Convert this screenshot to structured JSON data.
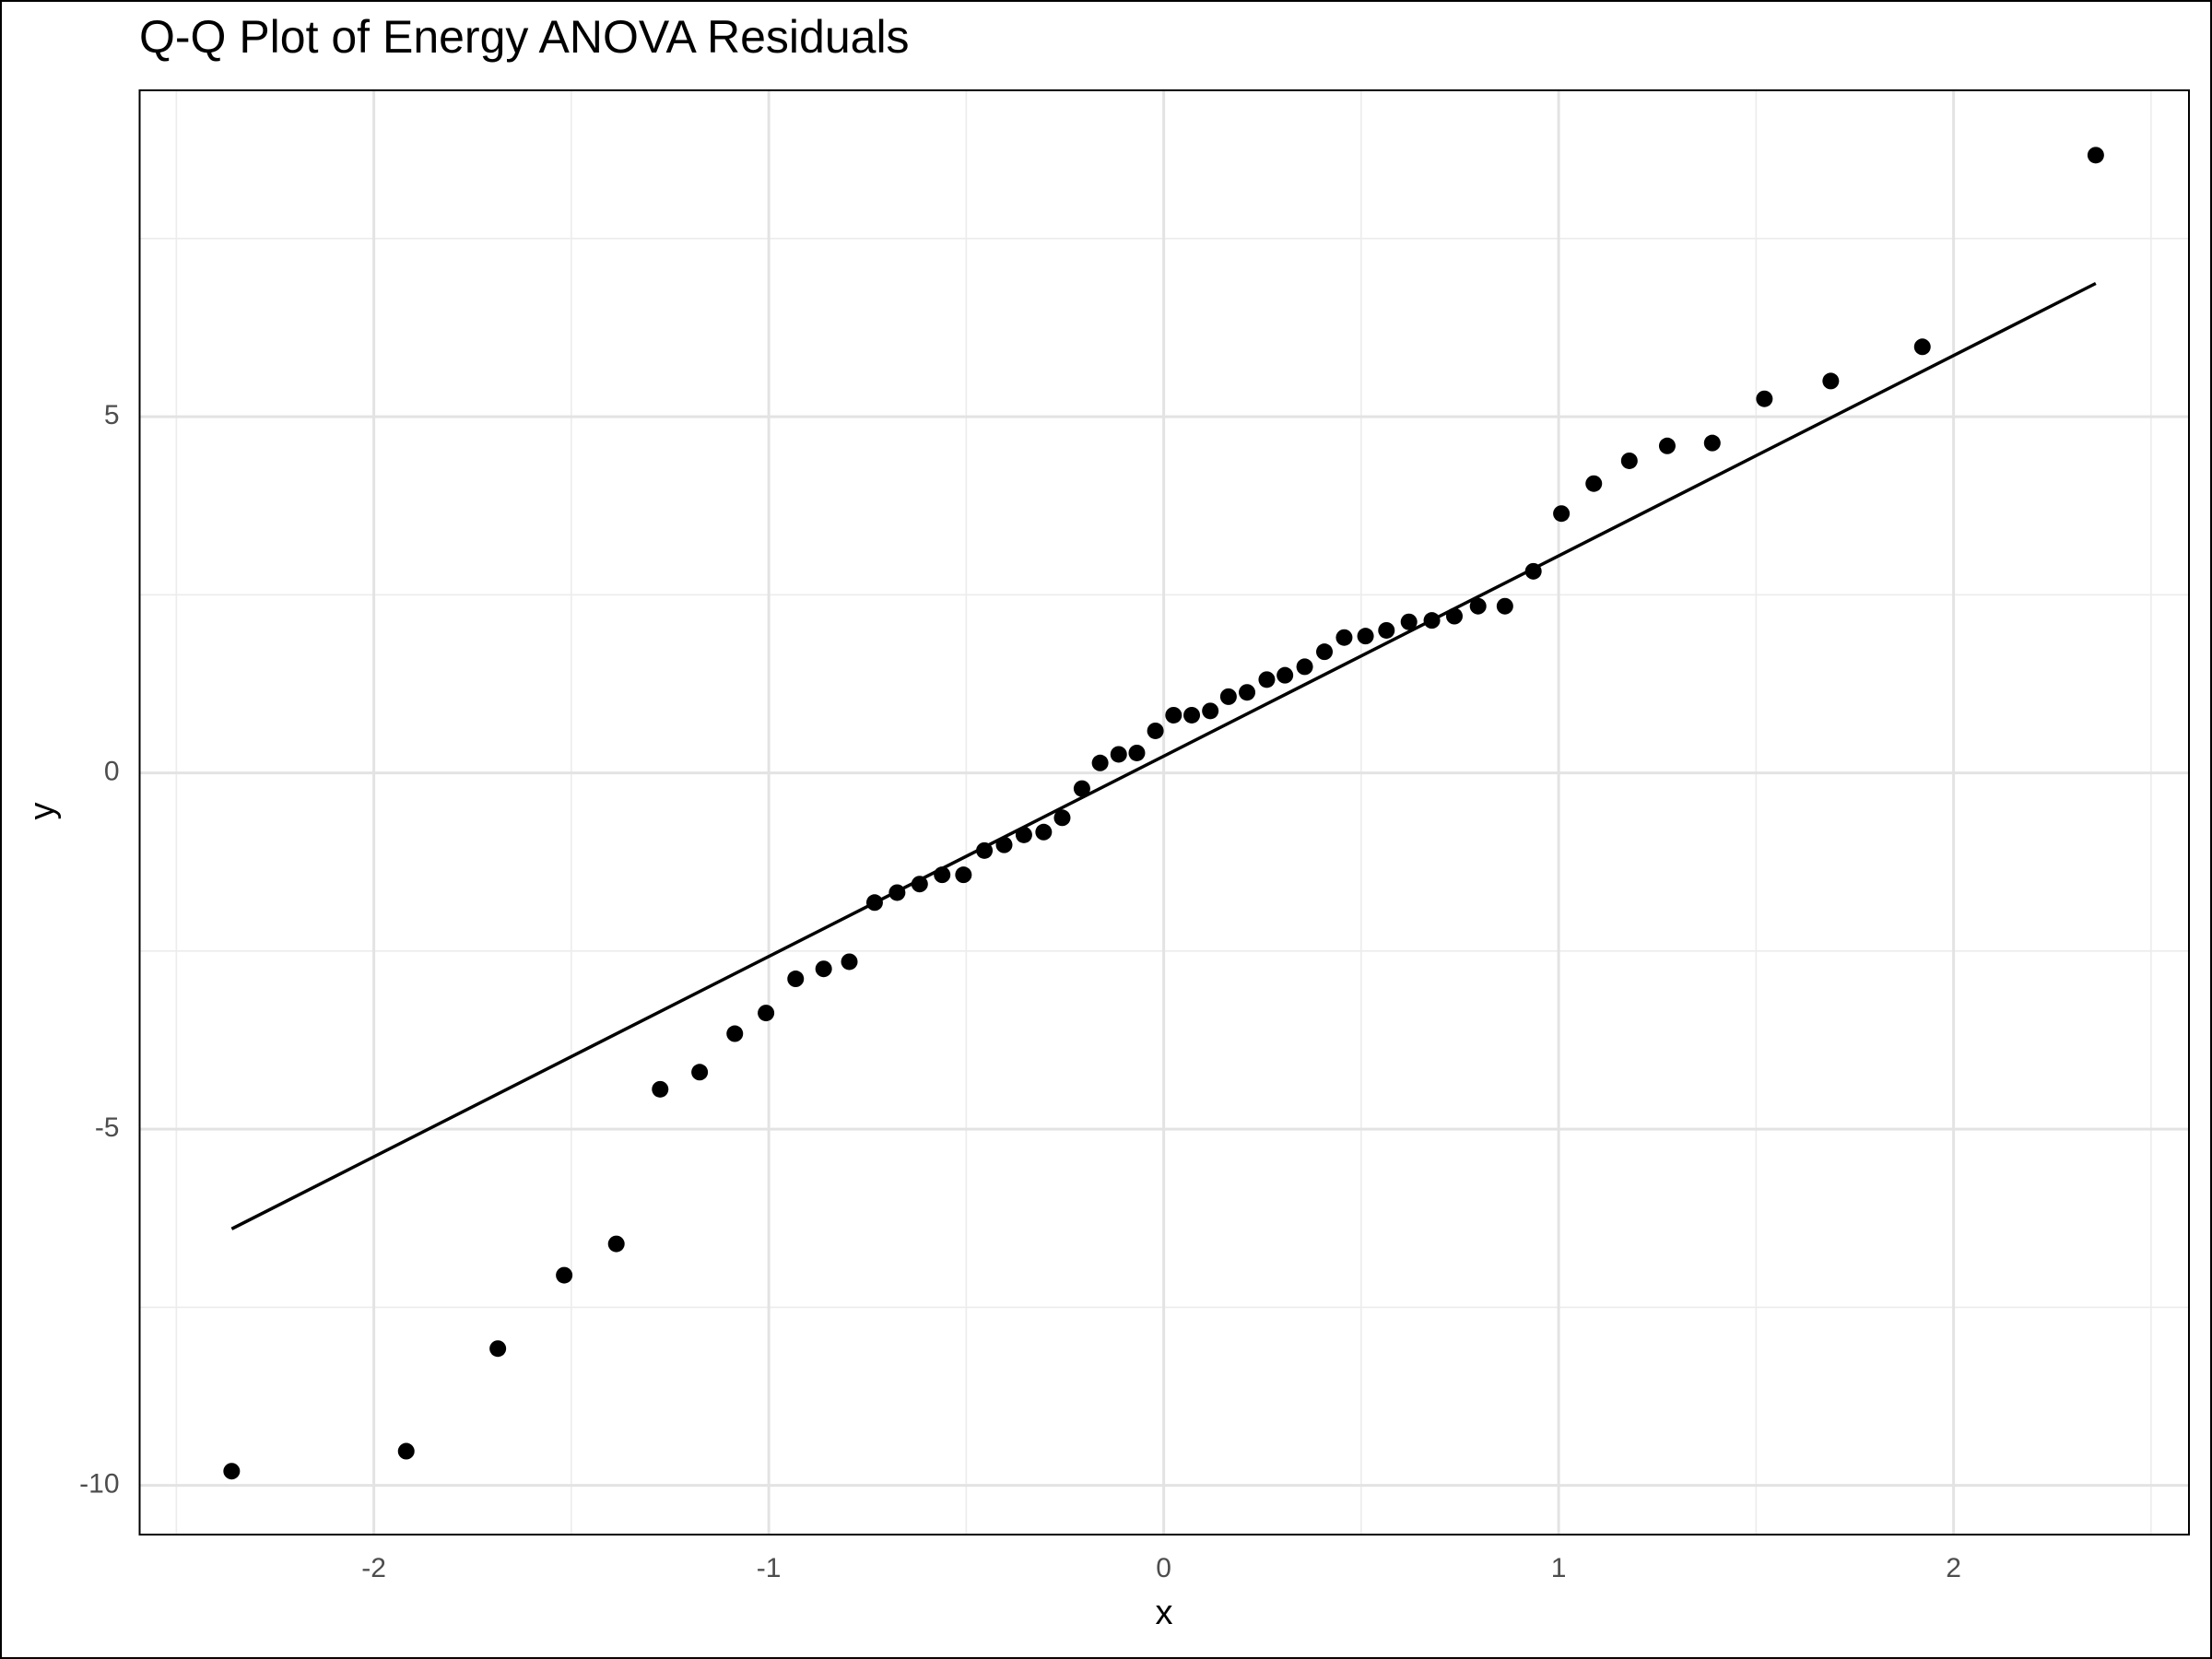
{
  "chart_data": {
    "type": "scatter",
    "title": "Q-Q Plot of Energy ANOVA Residuals",
    "x_label": "x",
    "y_label": "y",
    "x": [
      -2.36,
      -1.918,
      -1.686,
      -1.518,
      -1.386,
      -1.275,
      -1.175,
      -1.086,
      -1.007,
      -0.932,
      -0.861,
      -0.796,
      -0.732,
      -0.675,
      -0.618,
      -0.561,
      -0.507,
      -0.454,
      -0.404,
      -0.354,
      -0.304,
      -0.257,
      -0.207,
      -0.161,
      -0.114,
      -0.068,
      -0.021,
      0.025,
      0.071,
      0.118,
      0.164,
      0.211,
      0.261,
      0.307,
      0.357,
      0.407,
      0.457,
      0.511,
      0.564,
      0.621,
      0.679,
      0.736,
      0.796,
      0.864,
      0.936,
      1.007,
      1.089,
      1.179,
      1.275,
      1.389,
      1.521,
      1.689,
      1.921,
      2.36
    ],
    "y": [
      -9.8,
      -9.52,
      -8.08,
      -7.05,
      -6.61,
      -4.44,
      -4.2,
      -3.66,
      -3.37,
      -2.89,
      -2.75,
      -2.65,
      -1.82,
      -1.68,
      -1.56,
      -1.43,
      -1.43,
      -1.09,
      -1.01,
      -0.87,
      -0.83,
      -0.63,
      -0.22,
      0.14,
      0.26,
      0.28,
      0.59,
      0.81,
      0.81,
      0.87,
      1.07,
      1.13,
      1.31,
      1.37,
      1.49,
      1.7,
      1.9,
      1.92,
      2.0,
      2.12,
      2.14,
      2.2,
      2.34,
      2.34,
      2.83,
      3.64,
      4.06,
      4.38,
      4.59,
      4.63,
      5.25,
      5.5,
      5.98,
      8.67
    ],
    "point_color": "#000000",
    "line": {
      "x": [
        -2.36,
        2.36
      ],
      "y": [
        -6.4,
        6.87
      ],
      "color": "#000000"
    },
    "xlim": [
      -2.593,
      2.596
    ],
    "ylim": [
      -10.69,
      9.58
    ],
    "xticks": [
      -2,
      -1,
      0,
      1,
      2
    ],
    "yticks": [
      -10,
      -5,
      0,
      5
    ],
    "minor_xticks": [
      -2.5,
      -1.5,
      -0.5,
      0.5,
      1.5,
      2.5
    ],
    "minor_yticks": [
      -7.5,
      -2.5,
      2.5,
      7.5
    ],
    "grid": true
  }
}
